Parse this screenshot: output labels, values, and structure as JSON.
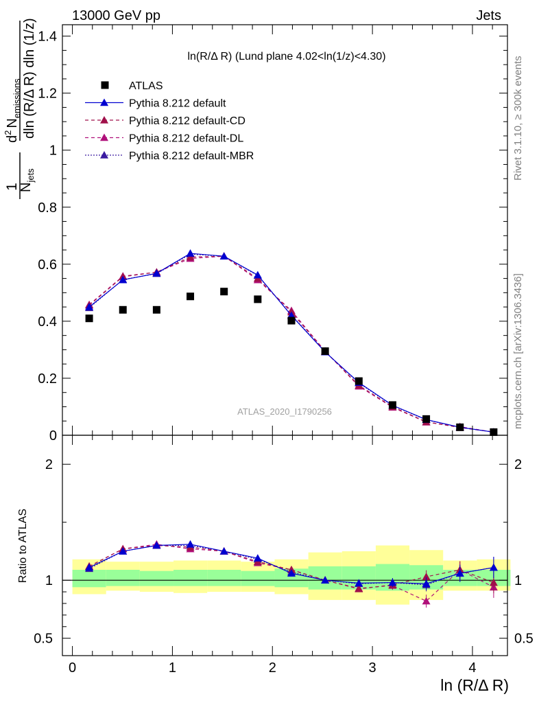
{
  "header": {
    "energy": "13000 GeV pp",
    "process": "Jets"
  },
  "side": {
    "rivet": "Rivet 3.1.10, ≥ 300k events",
    "mcplots": "mcplots.cern.ch [arXiv:1306.3436]"
  },
  "colors": {
    "data": "#000000",
    "default": "#0000d0",
    "default_cd": "#a0104a",
    "default_dl": "#b0107a",
    "default_mbr": "#3a1aa0",
    "band_outer": "#ffff99",
    "band_inner": "#99ff99"
  },
  "chart_data": [
    {
      "type": "scatter",
      "title": "ln(R/Δ R) (Lund plane 4.02<ln(1/z)<4.30)",
      "analysis": "ATLAS_2020_I1790256",
      "ylabel": "1/N_jets d²N_emissions / dln(R/Δ R) dln(1/z)",
      "ylabel_parts": {
        "frac_num": "1",
        "n_jets": "N",
        "jets_sub": "jets",
        "d2": "d",
        "sq": "2",
        "n_em": "N",
        "em_sub": "emissions",
        "denom": "dln (R/Δ R) dln (1/z)"
      },
      "xlabel": "",
      "xlim": [
        -0.1,
        4.35
      ],
      "ylim": [
        0,
        1.44
      ],
      "y_ticks": [
        "0",
        "0.2",
        "0.4",
        "0.6",
        "0.8",
        "1",
        "1.2",
        "1.4"
      ],
      "y_tick_values": [
        0,
        0.2,
        0.4,
        0.6,
        0.8,
        1.0,
        1.2,
        1.4
      ],
      "legend_position": "top-left",
      "x": [
        0.168,
        0.505,
        0.842,
        1.179,
        1.516,
        1.853,
        2.19,
        2.527,
        2.864,
        3.201,
        3.538,
        3.875,
        4.212
      ],
      "series": [
        {
          "name": "ATLAS",
          "marker": "square",
          "values": [
            0.41,
            0.44,
            0.44,
            0.487,
            0.504,
            0.477,
            0.402,
            0.295,
            0.19,
            0.106,
            0.057,
            0.028,
            0.011
          ]
        },
        {
          "name": "Pythia 8.212 default",
          "style": "solid",
          "values": [
            0.45,
            0.545,
            0.568,
            0.638,
            0.628,
            0.562,
            0.42,
            0.292,
            0.185,
            0.105,
            0.055,
            0.028,
            0.011
          ]
        },
        {
          "name": "Pythia 8.212 default-CD",
          "style": "dashed",
          "values": [
            0.456,
            0.556,
            0.572,
            0.625,
            0.628,
            0.55,
            0.432,
            0.294,
            0.175,
            0.1,
            0.047,
            0.027,
            0.011
          ]
        },
        {
          "name": "Pythia 8.212 default-DL",
          "style": "dashed",
          "values": [
            0.458,
            0.558,
            0.572,
            0.62,
            0.628,
            0.545,
            0.437,
            0.295,
            0.172,
            0.098,
            0.046,
            0.03,
            0.011
          ]
        },
        {
          "name": "Pythia 8.212 default-MBR",
          "style": "dotted",
          "values": [
            0.447,
            0.546,
            0.567,
            0.635,
            0.628,
            0.56,
            0.422,
            0.293,
            0.183,
            0.104,
            0.054,
            0.028,
            0.011
          ]
        }
      ]
    },
    {
      "type": "line",
      "title": "",
      "ylabel": "Ratio to ATLAS",
      "xlabel": "ln (R/Δ R)",
      "xlim": [
        -0.1,
        4.35
      ],
      "ylim": [
        0.35,
        2.25
      ],
      "x_ticks": [
        "0",
        "1",
        "2",
        "3",
        "4"
      ],
      "x_tick_values": [
        0,
        1,
        2,
        3,
        4
      ],
      "y_ticks": [
        "0.5",
        "1",
        "2"
      ],
      "y_tick_values": [
        0.5,
        1,
        2
      ],
      "bin_edges": [
        0.0,
        0.337,
        0.674,
        1.011,
        1.348,
        1.685,
        2.022,
        2.359,
        2.696,
        3.033,
        3.37,
        3.707,
        4.044,
        4.38
      ],
      "band_outer": [
        [
          0.88,
          1.18
        ],
        [
          0.91,
          1.16
        ],
        [
          0.9,
          1.16
        ],
        [
          0.89,
          1.17
        ],
        [
          0.9,
          1.17
        ],
        [
          0.9,
          1.16
        ],
        [
          0.88,
          1.18
        ],
        [
          0.83,
          1.24
        ],
        [
          0.83,
          1.25
        ],
        [
          0.79,
          1.3
        ],
        [
          0.83,
          1.26
        ],
        [
          0.91,
          1.17
        ],
        [
          0.91,
          1.18
        ]
      ],
      "band_inner": [
        [
          0.94,
          1.09
        ],
        [
          0.95,
          1.09
        ],
        [
          0.95,
          1.08
        ],
        [
          0.95,
          1.09
        ],
        [
          0.95,
          1.09
        ],
        [
          0.95,
          1.08
        ],
        [
          0.94,
          1.1
        ],
        [
          0.92,
          1.12
        ],
        [
          0.92,
          1.12
        ],
        [
          0.91,
          1.14
        ],
        [
          0.92,
          1.13
        ],
        [
          0.95,
          1.09
        ],
        [
          0.95,
          1.09
        ]
      ],
      "x": [
        0.168,
        0.505,
        0.842,
        1.179,
        1.516,
        1.853,
        2.19,
        2.527,
        2.864,
        3.201,
        3.538,
        3.875,
        4.212
      ],
      "series": [
        {
          "name": "Pythia 8.212 default",
          "style": "solid",
          "values": [
            1.11,
            1.25,
            1.3,
            1.31,
            1.25,
            1.19,
            1.06,
            1.0,
            0.975,
            0.98,
            0.97,
            1.06,
            1.11
          ]
        },
        {
          "name": "Pythia 8.212 default-CD",
          "style": "dashed",
          "values": [
            1.12,
            1.27,
            1.3,
            1.285,
            1.25,
            1.16,
            1.09,
            1.0,
            0.925,
            0.96,
            1.03,
            1.09,
            0.98
          ]
        },
        {
          "name": "Pythia 8.212 default-DL",
          "style": "dashed",
          "values": [
            1.12,
            1.27,
            1.31,
            1.27,
            1.25,
            1.15,
            1.09,
            1.0,
            0.93,
            0.955,
            0.82,
            1.09,
            0.94
          ]
        },
        {
          "name": "Pythia 8.212 default-MBR",
          "style": "dotted",
          "values": [
            1.1,
            1.25,
            1.3,
            1.3,
            1.25,
            1.18,
            1.07,
            1.0,
            0.97,
            0.98,
            0.96,
            1.06,
            1.11
          ]
        }
      ]
    }
  ]
}
